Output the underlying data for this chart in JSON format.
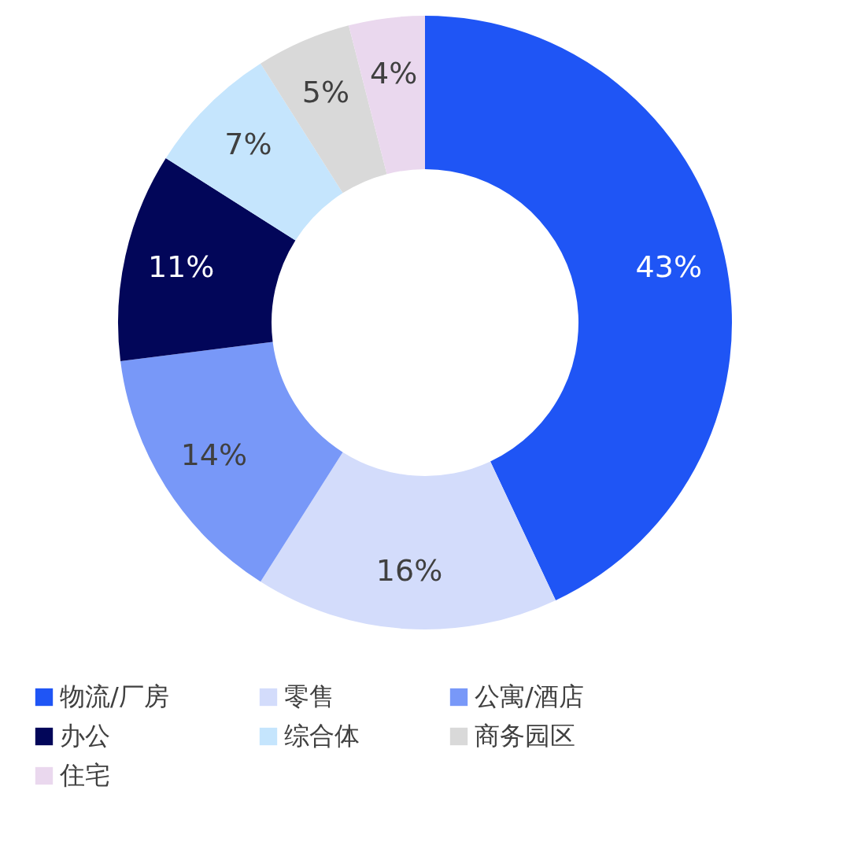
{
  "chart_data": {
    "type": "donut",
    "categories": [
      "物流/厂房",
      "零售",
      "公寓/酒店",
      "办公",
      "综合体",
      "商务园区",
      "住宅"
    ],
    "values": [
      43,
      16,
      14,
      11,
      7,
      5,
      4
    ],
    "colors": [
      "#1f55f5",
      "#d3dcfb",
      "#7898f8",
      "#020659",
      "#c5e5fd",
      "#d9d9d9",
      "#ead8ee"
    ],
    "value_labels": [
      "43%",
      "16%",
      "14%",
      "11%",
      "7%",
      "5%",
      "4%"
    ],
    "legend": "bottom"
  }
}
